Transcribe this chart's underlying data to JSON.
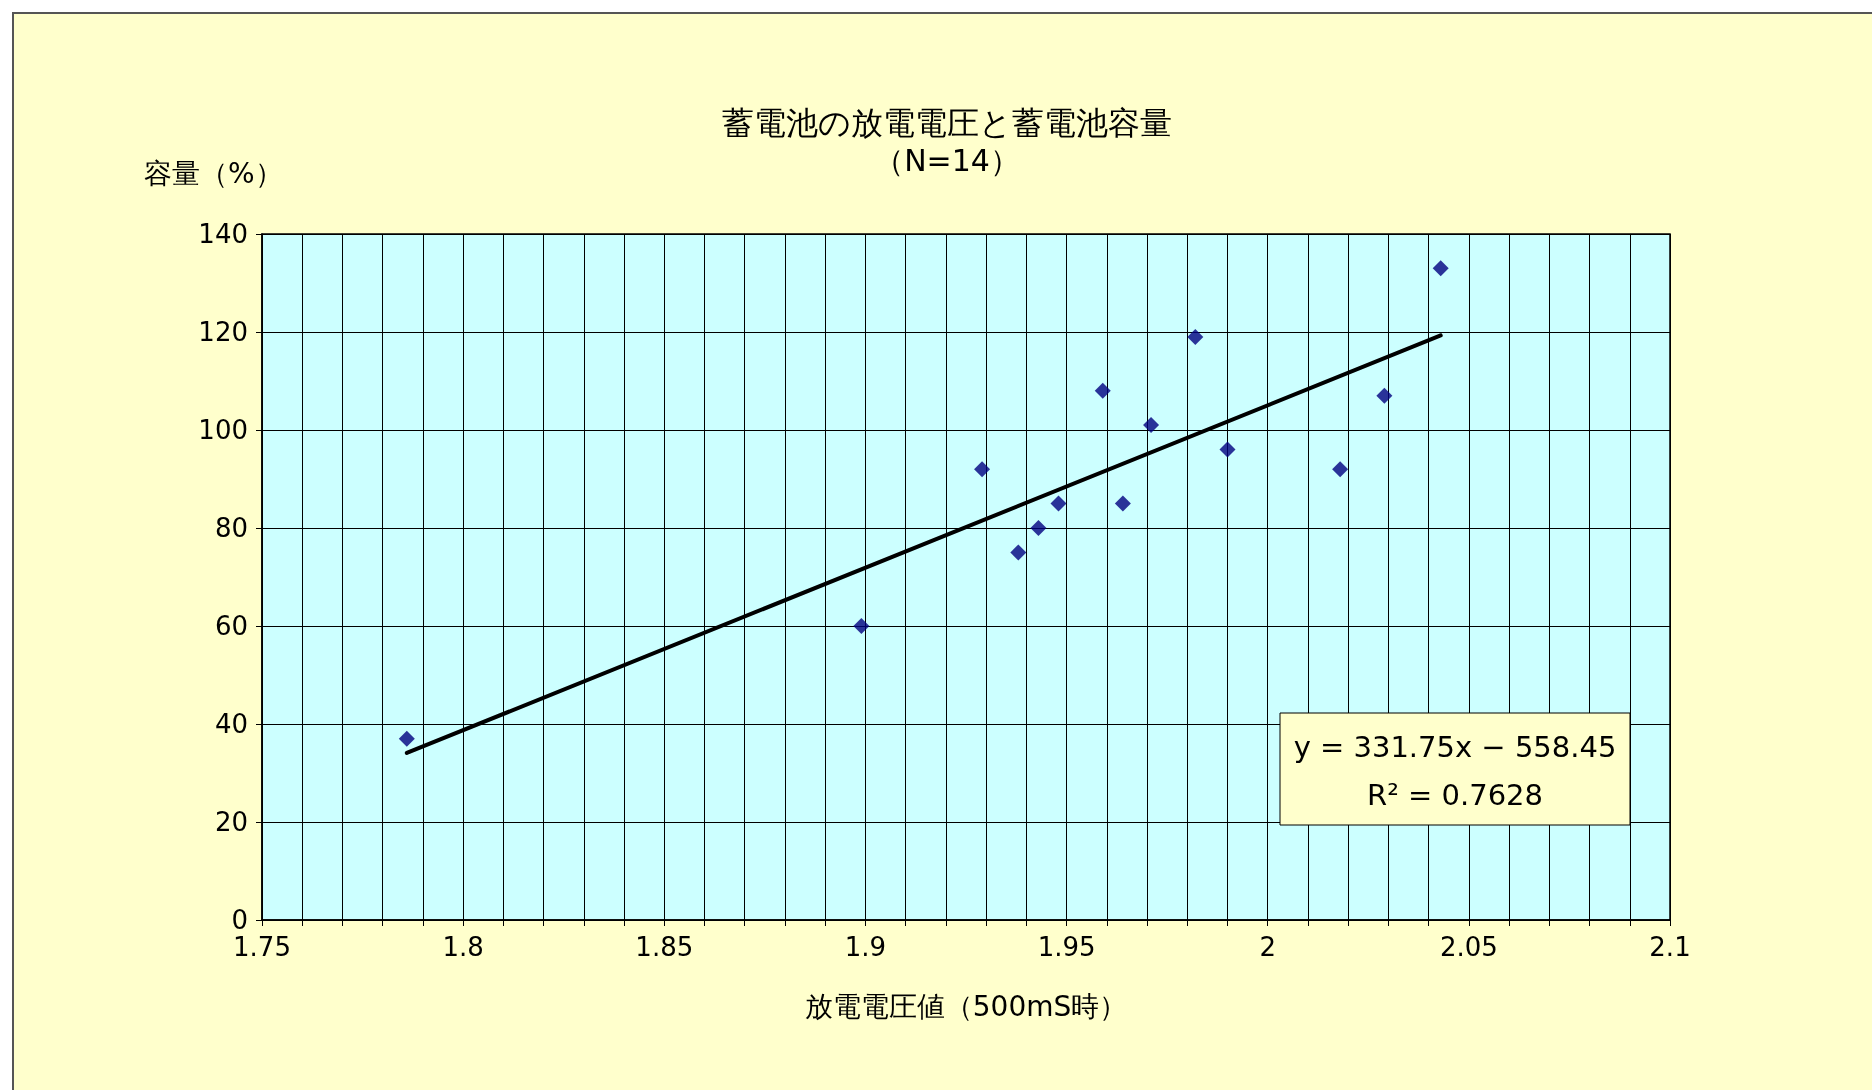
{
  "chart_data": {
    "type": "scatter",
    "title": "蓄電池の放電電圧と蓄電池容量",
    "subtitle": "（N=14）",
    "xlabel": "放電電圧値（500mS時）",
    "ylabel": "容量（%）",
    "annotations": [
      "y = 331.75x − 558.45",
      "R² = 0.7628"
    ],
    "series": [
      {
        "color": "#000080",
        "marker": "diamond",
        "x": [
          1.786,
          1.899,
          1.929,
          1.938,
          1.943,
          1.948,
          1.959,
          1.964,
          1.971,
          1.982,
          1.99,
          2.018,
          2.029,
          2.043
        ],
        "values": [
          37,
          60,
          92,
          75,
          80,
          85,
          108,
          85,
          101,
          119,
          96,
          92,
          107,
          133
        ]
      },
      {
        "type": "line",
        "color": "#000000",
        "marker": "none",
        "line_style": "solid",
        "x": [
          1.786,
          2.043
        ],
        "values": [
          34.1,
          119.3
        ]
      }
    ],
    "xlim": [
      1.75,
      2.1
    ],
    "xticks": [
      1.75,
      {
        "value": 1.76,
        "label": null
      },
      {
        "value": 1.77,
        "label": null
      },
      {
        "value": 1.78,
        "label": null
      },
      {
        "value": 1.79,
        "label": null
      },
      1.8,
      {
        "value": 1.81,
        "label": null
      },
      {
        "value": 1.82,
        "label": null
      },
      {
        "value": 1.83,
        "label": null
      },
      {
        "value": 1.84,
        "label": null
      },
      1.85,
      {
        "value": 1.86,
        "label": null
      },
      {
        "value": 1.87,
        "label": null
      },
      {
        "value": 1.88,
        "label": null
      },
      {
        "value": 1.89,
        "label": null
      },
      1.9,
      {
        "value": 1.91,
        "label": null
      },
      {
        "value": 1.92,
        "label": null
      },
      {
        "value": 1.93,
        "label": null
      },
      {
        "value": 1.94,
        "label": null
      },
      1.95,
      {
        "value": 1.96,
        "label": null
      },
      {
        "value": 1.97,
        "label": null
      },
      {
        "value": 1.98,
        "label": null
      },
      {
        "value": 1.99,
        "label": null
      },
      2,
      {
        "value": 2.01,
        "label": null
      },
      {
        "value": 2.02,
        "label": null
      },
      {
        "value": 2.03,
        "label": null
      },
      {
        "value": 2.04,
        "label": null
      },
      2.05,
      {
        "value": 2.06,
        "label": null
      },
      {
        "value": 2.07,
        "label": null
      },
      {
        "value": 2.08,
        "label": null
      },
      {
        "value": 2.09,
        "label": null
      },
      2.1
    ],
    "ylim": [
      0,
      140
    ],
    "yticks": [
      0,
      20,
      40,
      60,
      80,
      100,
      120,
      140
    ],
    "grid": true
  }
}
